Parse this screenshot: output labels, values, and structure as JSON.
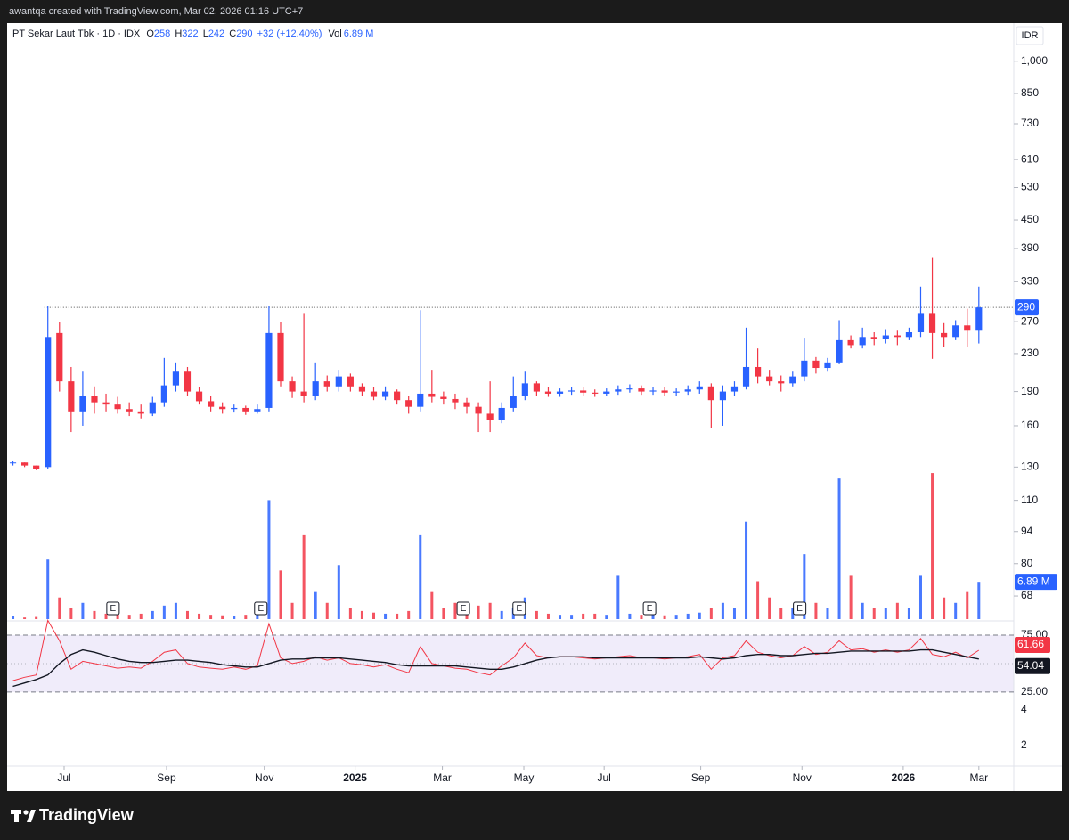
{
  "watermark": "awantqa created with TradingView.com, Mar 02, 2026 01:16 UTC+7",
  "brand": "TradingView",
  "chart_data": [
    {
      "type": "candlestick",
      "title": "PT Sekar Laut Tbk · 1D · IDX",
      "ohlc_labels": [
        "O",
        "H",
        "L",
        "C"
      ],
      "change": "+32 (+12.40%)",
      "volume_caption": "Vol",
      "volume_text": "6.89 M",
      "currency": "IDR",
      "categories": [
        null,
        null,
        null,
        null,
        null,
        null,
        null,
        null,
        null,
        null,
        null,
        null,
        null,
        null,
        null,
        null,
        null,
        null,
        null,
        null,
        null,
        null,
        null,
        null,
        null,
        null,
        null,
        null,
        null,
        null,
        null,
        null,
        null,
        null,
        null,
        null,
        null,
        null,
        null,
        null,
        null,
        null,
        null,
        null,
        null,
        null,
        null,
        null,
        null,
        null,
        null,
        null,
        null,
        null,
        null,
        null,
        null,
        null,
        null,
        null,
        null,
        null,
        null,
        null,
        null,
        null,
        null,
        null,
        null,
        null,
        null,
        null,
        null,
        null,
        null,
        null,
        null,
        null,
        null,
        null,
        null,
        null,
        null,
        null
      ],
      "open": [
        133,
        133,
        131,
        130,
        255,
        200,
        172,
        186,
        180,
        178,
        174,
        172,
        170,
        180,
        196,
        210,
        190,
        181,
        176,
        174,
        175,
        172,
        175,
        255,
        200,
        190,
        186,
        200,
        195,
        205,
        195,
        190,
        185,
        190,
        182,
        176,
        188,
        185,
        183,
        180,
        176,
        170,
        165,
        175,
        186,
        198,
        190,
        188,
        190,
        191,
        189,
        188,
        190,
        192,
        193,
        190,
        191,
        189,
        190,
        192,
        195,
        182,
        190,
        195,
        215,
        205,
        200,
        198,
        205,
        222,
        214,
        220,
        246,
        240,
        250,
        247,
        252,
        250,
        256,
        282,
        255,
        250,
        265,
        258
      ],
      "high": [
        134,
        133,
        131,
        292,
        270,
        215,
        210,
        195,
        188,
        185,
        180,
        178,
        185,
        225,
        220,
        215,
        194,
        186,
        180,
        178,
        177,
        178,
        292,
        270,
        205,
        282,
        220,
        206,
        212,
        208,
        198,
        194,
        195,
        192,
        186,
        286,
        212,
        190,
        188,
        184,
        180,
        200,
        180,
        205,
        210,
        200,
        194,
        193,
        194,
        194,
        192,
        193,
        196,
        197,
        196,
        194,
        194,
        193,
        196,
        200,
        198,
        196,
        200,
        262,
        236,
        212,
        206,
        210,
        248,
        226,
        225,
        272,
        252,
        262,
        256,
        260,
        258,
        262,
        322,
        372,
        268,
        272,
        288,
        322
      ],
      "low": [
        131,
        130,
        128,
        129,
        190,
        155,
        160,
        170,
        172,
        170,
        168,
        166,
        168,
        176,
        190,
        186,
        178,
        172,
        170,
        171,
        169,
        170,
        172,
        195,
        184,
        180,
        182,
        190,
        190,
        190,
        186,
        182,
        182,
        178,
        170,
        172,
        180,
        178,
        174,
        170,
        155,
        155,
        162,
        172,
        182,
        186,
        185,
        185,
        187,
        186,
        185,
        186,
        187,
        189,
        187,
        187,
        186,
        186,
        187,
        188,
        158,
        160,
        186,
        192,
        198,
        196,
        190,
        195,
        200,
        208,
        210,
        218,
        236,
        236,
        240,
        242,
        240,
        246,
        250,
        224,
        238,
        246,
        238,
        242
      ],
      "close": [
        133,
        131,
        129,
        250,
        200,
        172,
        186,
        180,
        178,
        174,
        172,
        170,
        180,
        196,
        210,
        190,
        181,
        176,
        174,
        175,
        172,
        174,
        255,
        200,
        190,
        186,
        200,
        195,
        205,
        195,
        190,
        185,
        190,
        182,
        176,
        188,
        185,
        183,
        180,
        176,
        170,
        165,
        175,
        186,
        198,
        190,
        188,
        190,
        191,
        189,
        188,
        190,
        192,
        193,
        190,
        191,
        189,
        190,
        192,
        195,
        182,
        190,
        195,
        215,
        205,
        200,
        198,
        205,
        222,
        214,
        220,
        246,
        240,
        250,
        247,
        252,
        250,
        256,
        282,
        255,
        250,
        265,
        258,
        290
      ],
      "volume": [
        0.5,
        0.3,
        0.4,
        11,
        4,
        2,
        3,
        1.5,
        1,
        1,
        0.8,
        1,
        1.5,
        2.5,
        3,
        1.5,
        1,
        0.8,
        0.7,
        0.6,
        0.8,
        1,
        22,
        9,
        3,
        15.5,
        5,
        3,
        10,
        2,
        1.5,
        1.2,
        1,
        1,
        1.5,
        15.5,
        5,
        2,
        3,
        1.5,
        2.5,
        3,
        1.5,
        2,
        4,
        1.5,
        1,
        0.8,
        0.8,
        1,
        1,
        0.8,
        8,
        1,
        0.8,
        0.8,
        0.7,
        0.8,
        1,
        1.2,
        2,
        3,
        2,
        18,
        7,
        4,
        2,
        2,
        12,
        3,
        2,
        26,
        8,
        3,
        2,
        2,
        3,
        2,
        8,
        27,
        4,
        3,
        5,
        6.89
      ],
      "up_color": "#2962ff",
      "down_color": "#f23645",
      "log_scale": true,
      "grid": false,
      "ylim": [
        60,
        1200
      ],
      "yticks": [
        {
          "value": 1000,
          "label": "1,000"
        },
        850,
        730,
        610,
        530,
        450,
        390,
        330,
        270,
        230,
        190,
        160,
        130,
        110,
        94,
        80,
        68
      ],
      "vlim": [
        0,
        28
      ],
      "xlim": [
        -0.5,
        86
      ],
      "xticks": [
        {
          "value": 4.4,
          "label": "Jul"
        },
        {
          "value": 13.2,
          "label": "Sep"
        },
        {
          "value": 21.6,
          "label": "Nov"
        },
        {
          "value": 29.4,
          "label": "2025"
        },
        {
          "value": 36.9,
          "label": "Mar"
        },
        {
          "value": 43.9,
          "label": "May"
        },
        {
          "value": 50.8,
          "label": "Jul"
        },
        {
          "value": 59.1,
          "label": "Sep"
        },
        {
          "value": 67.8,
          "label": "Nov"
        },
        {
          "value": 76.5,
          "label": "2026"
        },
        {
          "value": 83.0,
          "label": "Mar"
        }
      ],
      "hline": 290,
      "hline_start": 2.7,
      "events": [
        {
          "x": 8.6,
          "label": "E"
        },
        {
          "x": 21.3,
          "label": "E"
        },
        {
          "x": 38.7,
          "label": "E"
        },
        {
          "x": 43.5,
          "label": "E"
        },
        {
          "x": 54.7,
          "label": "E"
        },
        {
          "x": 67.6,
          "label": "E"
        }
      ]
    },
    {
      "type": "line",
      "categories": [
        null,
        null,
        null,
        null,
        null,
        null,
        null,
        null,
        null,
        null,
        null,
        null,
        null,
        null,
        null,
        null,
        null,
        null,
        null,
        null,
        null,
        null,
        null,
        null,
        null,
        null,
        null,
        null,
        null,
        null,
        null,
        null,
        null,
        null,
        null,
        null,
        null,
        null,
        null,
        null,
        null,
        null,
        null,
        null,
        null,
        null,
        null,
        null,
        null,
        null,
        null,
        null,
        null,
        null,
        null,
        null,
        null,
        null,
        null,
        null,
        null,
        null,
        null,
        null,
        null,
        null,
        null,
        null,
        null,
        null,
        null,
        null,
        null,
        null,
        null,
        null,
        null,
        null,
        null,
        null,
        null,
        null,
        null,
        null
      ],
      "series": [
        {
          "color": "#f23645",
          "values": [
            35,
            38,
            40,
            88,
            70,
            45,
            52,
            50,
            48,
            46,
            47,
            46,
            52,
            60,
            62,
            50,
            47,
            46,
            45,
            47,
            45,
            48,
            85,
            55,
            50,
            52,
            56,
            53,
            55,
            50,
            49,
            47,
            49,
            45,
            42,
            65,
            50,
            48,
            46,
            45,
            42,
            40,
            48,
            55,
            68,
            57,
            55,
            56,
            56,
            55,
            54,
            55,
            56,
            57,
            55,
            55,
            54,
            55,
            56,
            58,
            45,
            55,
            57,
            70,
            60,
            57,
            55,
            57,
            65,
            58,
            60,
            70,
            62,
            63,
            60,
            62,
            60,
            62,
            72,
            58,
            56,
            60,
            55,
            61.66
          ]
        },
        {
          "color": "#131722",
          "values": [
            30,
            33,
            36,
            40,
            50,
            58,
            62,
            60,
            57,
            54,
            52,
            51,
            51,
            52,
            53,
            53,
            52,
            51,
            49,
            48,
            47,
            47,
            50,
            53,
            54,
            54,
            55,
            55,
            55,
            54,
            53,
            52,
            51,
            49,
            48,
            48,
            48,
            48,
            48,
            47,
            46,
            45,
            45,
            47,
            50,
            53,
            55,
            56,
            56,
            56,
            55,
            55,
            55,
            55,
            55,
            55,
            55,
            55,
            55,
            56,
            55,
            54,
            55,
            57,
            58,
            58,
            57,
            57,
            58,
            59,
            59,
            60,
            61,
            61,
            61,
            61,
            61,
            61,
            62,
            62,
            60,
            58,
            56,
            54.04
          ]
        }
      ],
      "ylim": [
        -40,
        87.5
      ],
      "yticks": [
        {
          "value": 75,
          "label": "75.00"
        },
        {
          "value": 25,
          "label": "25.00"
        }
      ],
      "midline": 50,
      "band_color": "#f0ecfa",
      "y2lim": [
        1.34,
        22.6
      ],
      "y2log": true,
      "y2ticks": [
        4,
        2
      ]
    }
  ]
}
